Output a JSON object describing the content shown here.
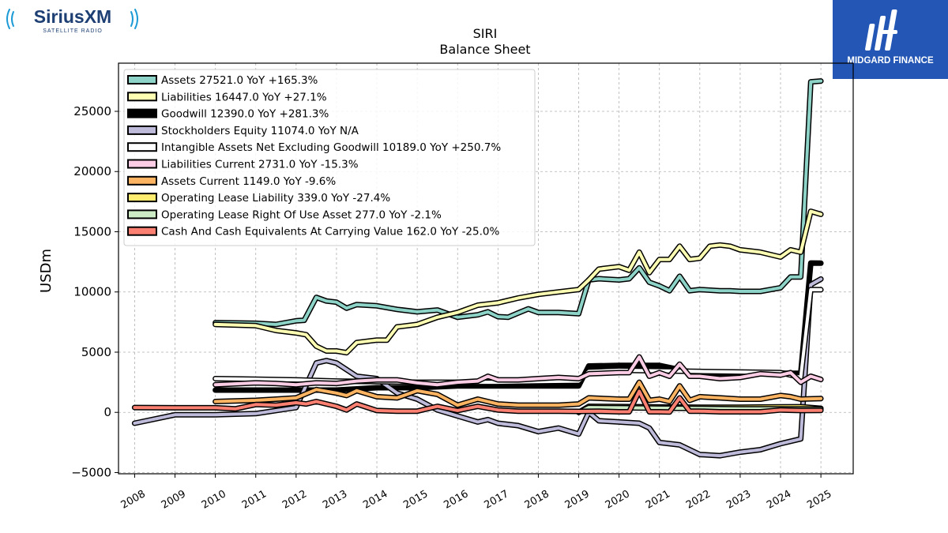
{
  "logos": {
    "left_brand": "SiriusXM",
    "left_sub": "SATELLITE RADIO",
    "right_brand": "MIDGARD FINANCE"
  },
  "chart_data": {
    "type": "line",
    "title": "SIRI",
    "subtitle": "Balance  Sheet",
    "ylabel": "USDm",
    "xlabel": "",
    "xlim": [
      2007.6,
      2025.8
    ],
    "ylim": [
      -5100,
      29000
    ],
    "yticks": [
      -5000,
      0,
      5000,
      10000,
      15000,
      20000,
      25000
    ],
    "yticklabels": [
      "−5000",
      "0",
      "5000",
      "10000",
      "15000",
      "20000",
      "25000"
    ],
    "xticks": [
      2008,
      2009,
      2010,
      2011,
      2012,
      2013,
      2014,
      2015,
      2016,
      2017,
      2018,
      2019,
      2020,
      2021,
      2022,
      2023,
      2024,
      2025
    ],
    "grid": true,
    "legend_position": "top-left",
    "series": [
      {
        "name": "Assets",
        "legend": "Assets  27521.0 YoY +165.3%",
        "color": "#8dd3c7",
        "x": [
          2010,
          2011,
          2011.5,
          2012,
          2012.2,
          2012.5,
          2012.75,
          2013,
          2013.25,
          2013.5,
          2014,
          2014.5,
          2015,
          2015.5,
          2016,
          2016.5,
          2016.75,
          2017,
          2017.25,
          2017.5,
          2017.75,
          2018,
          2018.5,
          2019,
          2019.25,
          2019.5,
          2020,
          2020.25,
          2020.5,
          2020.75,
          2021,
          2021.25,
          2021.5,
          2021.75,
          2022,
          2022.5,
          2022.75,
          2023,
          2023.5,
          2024,
          2024.25,
          2024.5,
          2024.75,
          2025
        ],
        "y": [
          7450,
          7400,
          7300,
          7600,
          7650,
          9550,
          9250,
          9150,
          8650,
          8950,
          8850,
          8550,
          8350,
          8500,
          7900,
          8100,
          8350,
          7950,
          7900,
          8250,
          8600,
          8300,
          8300,
          8200,
          11000,
          11100,
          11000,
          11100,
          12000,
          10800,
          10500,
          10100,
          11300,
          10100,
          10200,
          10100,
          10100,
          10050,
          10050,
          10350,
          11250,
          11250,
          27450,
          27521
        ]
      },
      {
        "name": "Liabilities",
        "legend": "Liabilities  16447.0 YoY +27.1%",
        "color": "#ffffb3",
        "x": [
          2010,
          2011,
          2011.5,
          2012,
          2012.25,
          2012.5,
          2012.75,
          2013,
          2013.25,
          2013.5,
          2014,
          2014.25,
          2014.5,
          2015,
          2015.5,
          2016,
          2016.5,
          2017,
          2017.5,
          2018,
          2018.5,
          2019,
          2019.25,
          2019.5,
          2020,
          2020.25,
          2020.5,
          2020.75,
          2021,
          2021.25,
          2021.5,
          2021.75,
          2022,
          2022.25,
          2022.5,
          2022.75,
          2023,
          2023.5,
          2024,
          2024.25,
          2024.5,
          2024.75,
          2025
        ],
        "y": [
          7300,
          7200,
          6800,
          6600,
          6450,
          5500,
          5100,
          5100,
          4950,
          5800,
          6000,
          6000,
          7100,
          7300,
          7900,
          8300,
          8900,
          9100,
          9500,
          9800,
          10000,
          10200,
          11000,
          11900,
          12100,
          11800,
          13300,
          11600,
          12700,
          12700,
          13800,
          12700,
          12800,
          13800,
          13900,
          13800,
          13500,
          13300,
          12900,
          13500,
          13300,
          16700,
          16447
        ]
      },
      {
        "name": "Goodwill",
        "legend": "Goodwill  12390.0 YoY +281.3%",
        "color": "#000000",
        "x": [
          2010,
          2011,
          2012,
          2013,
          2014,
          2015,
          2016,
          2017,
          2018,
          2019,
          2019.25,
          2020,
          2021,
          2022,
          2023,
          2024,
          2024.5,
          2024.75,
          2025
        ],
        "y": [
          1850,
          1850,
          1850,
          1850,
          2050,
          2050,
          2200,
          2200,
          2200,
          2200,
          3850,
          3900,
          3900,
          3200,
          3250,
          3250,
          3250,
          12400,
          12390
        ]
      },
      {
        "name": "Stockholders Equity",
        "legend": "Stockholders Equity  11074.0 YoY N/A",
        "color": "#bebada",
        "x": [
          2008,
          2009,
          2010,
          2011,
          2012,
          2012.5,
          2012.75,
          2013,
          2013.5,
          2014,
          2014.5,
          2015,
          2015.5,
          2016,
          2016.5,
          2016.75,
          2017,
          2017.5,
          2018,
          2018.5,
          2019,
          2019.25,
          2019.5,
          2020,
          2020.5,
          2020.75,
          2021,
          2021.5,
          2022,
          2022.5,
          2023,
          2023.5,
          2024,
          2024.5,
          2024.75,
          2025
        ],
        "y": [
          -900,
          -200,
          -200,
          -100,
          400,
          4100,
          4300,
          4100,
          3000,
          2800,
          1600,
          1100,
          200,
          -300,
          -800,
          -600,
          -900,
          -1100,
          -1600,
          -1300,
          -1800,
          0,
          -700,
          -800,
          -900,
          -1300,
          -2500,
          -2700,
          -3500,
          -3600,
          -3300,
          -3100,
          -2600,
          -2200,
          10600,
          11074
        ]
      },
      {
        "name": "Intangible Assets Net Excluding Goodwill",
        "legend": "Intangible Assets Net Excluding Goodwill  10189.0 YoY +250.7%",
        "color": "#ffffff",
        "x": [
          2010,
          2011,
          2012,
          2013,
          2014,
          2015,
          2016,
          2017,
          2018,
          2019,
          2019.25,
          2020,
          2021,
          2022,
          2023,
          2024,
          2024.5,
          2024.75,
          2025
        ],
        "y": [
          2800,
          2750,
          2700,
          2600,
          2550,
          2500,
          2500,
          2500,
          2550,
          2600,
          3400,
          3500,
          3450,
          3400,
          3350,
          3300,
          2900,
          10200,
          10189
        ]
      },
      {
        "name": "Liabilities Current",
        "legend": "Liabilities Current  2731.0 YoY -15.3%",
        "color": "#fccde5",
        "x": [
          2010,
          2011,
          2011.5,
          2012,
          2012.5,
          2013,
          2013.5,
          2014,
          2014.5,
          2015,
          2015.5,
          2016,
          2016.5,
          2016.75,
          2017,
          2017.5,
          2018,
          2018.5,
          2019,
          2019.25,
          2020,
          2020.25,
          2020.5,
          2020.75,
          2021,
          2021.25,
          2021.5,
          2021.75,
          2022,
          2022.5,
          2023,
          2023.5,
          2024,
          2024.25,
          2024.5,
          2024.75,
          2025
        ],
        "y": [
          2300,
          2450,
          2400,
          2300,
          2450,
          2400,
          2600,
          2700,
          2700,
          2450,
          2300,
          2500,
          2600,
          3000,
          2700,
          2700,
          2800,
          2900,
          2800,
          3200,
          3300,
          3300,
          4600,
          3000,
          3300,
          3000,
          4000,
          3000,
          3000,
          2800,
          2900,
          3200,
          3100,
          3300,
          2500,
          3000,
          2731
        ]
      },
      {
        "name": "Assets Current",
        "legend": "Assets Current  1149.0 YoY -9.6%",
        "color": "#fdb462",
        "x": [
          2010,
          2011,
          2011.5,
          2012,
          2012.5,
          2013,
          2013.25,
          2013.5,
          2014,
          2014.5,
          2015,
          2015.5,
          2016,
          2016.5,
          2017,
          2017.5,
          2018,
          2018.5,
          2019,
          2019.25,
          2020,
          2020.25,
          2020.5,
          2020.75,
          2021,
          2021.25,
          2021.5,
          2021.75,
          2022,
          2022.5,
          2023,
          2023.5,
          2024,
          2024.25,
          2024.5,
          2025
        ],
        "y": [
          900,
          1000,
          1100,
          1200,
          1900,
          1600,
          1400,
          1800,
          1300,
          1200,
          1800,
          1500,
          600,
          1100,
          700,
          600,
          600,
          600,
          700,
          1200,
          1100,
          1100,
          2500,
          1000,
          1100,
          900,
          2200,
          1000,
          1300,
          1200,
          1100,
          1100,
          1400,
          1300,
          1100,
          1149
        ]
      },
      {
        "name": "Operating Lease Liability",
        "legend": "Operating Lease Liability  339.0 YoY -27.4%",
        "color": "#ffed6f",
        "x": [
          2019,
          2019.25,
          2020,
          2021,
          2022,
          2023,
          2024,
          2024.5,
          2025
        ],
        "y": [
          0,
          500,
          480,
          450,
          430,
          420,
          460,
          470,
          339
        ]
      },
      {
        "name": "Operating Lease Right Of Use Asset",
        "legend": "Operating Lease Right Of Use Asset  277.0 YoY -2.1%",
        "color": "#ccebc5",
        "x": [
          2019,
          2019.25,
          2020,
          2021,
          2022,
          2023,
          2024,
          2024.5,
          2025
        ],
        "y": [
          0,
          400,
          380,
          350,
          330,
          300,
          290,
          283,
          277
        ]
      },
      {
        "name": "Cash And Cash Equivalents At Carrying Value",
        "legend": "Cash And Cash Equivalents At Carrying Value  162.0 YoY -25.0%",
        "color": "#fb8072",
        "x": [
          2008,
          2009,
          2010,
          2010.5,
          2011,
          2011.5,
          2012,
          2012.25,
          2012.5,
          2013,
          2013.25,
          2013.5,
          2014,
          2014.5,
          2015,
          2015.5,
          2016,
          2016.5,
          2017,
          2017.5,
          2018,
          2018.5,
          2019,
          2019.5,
          2020,
          2020.25,
          2020.5,
          2020.75,
          2021,
          2021.25,
          2021.5,
          2021.75,
          2022,
          2022.5,
          2023,
          2023.5,
          2024,
          2024.5,
          2025
        ],
        "y": [
          400,
          380,
          380,
          300,
          650,
          600,
          800,
          700,
          900,
          500,
          200,
          700,
          150,
          100,
          100,
          500,
          150,
          500,
          200,
          100,
          100,
          100,
          80,
          100,
          50,
          50,
          1750,
          50,
          50,
          30,
          1200,
          100,
          100,
          50,
          50,
          50,
          200,
          150,
          162
        ]
      }
    ]
  }
}
